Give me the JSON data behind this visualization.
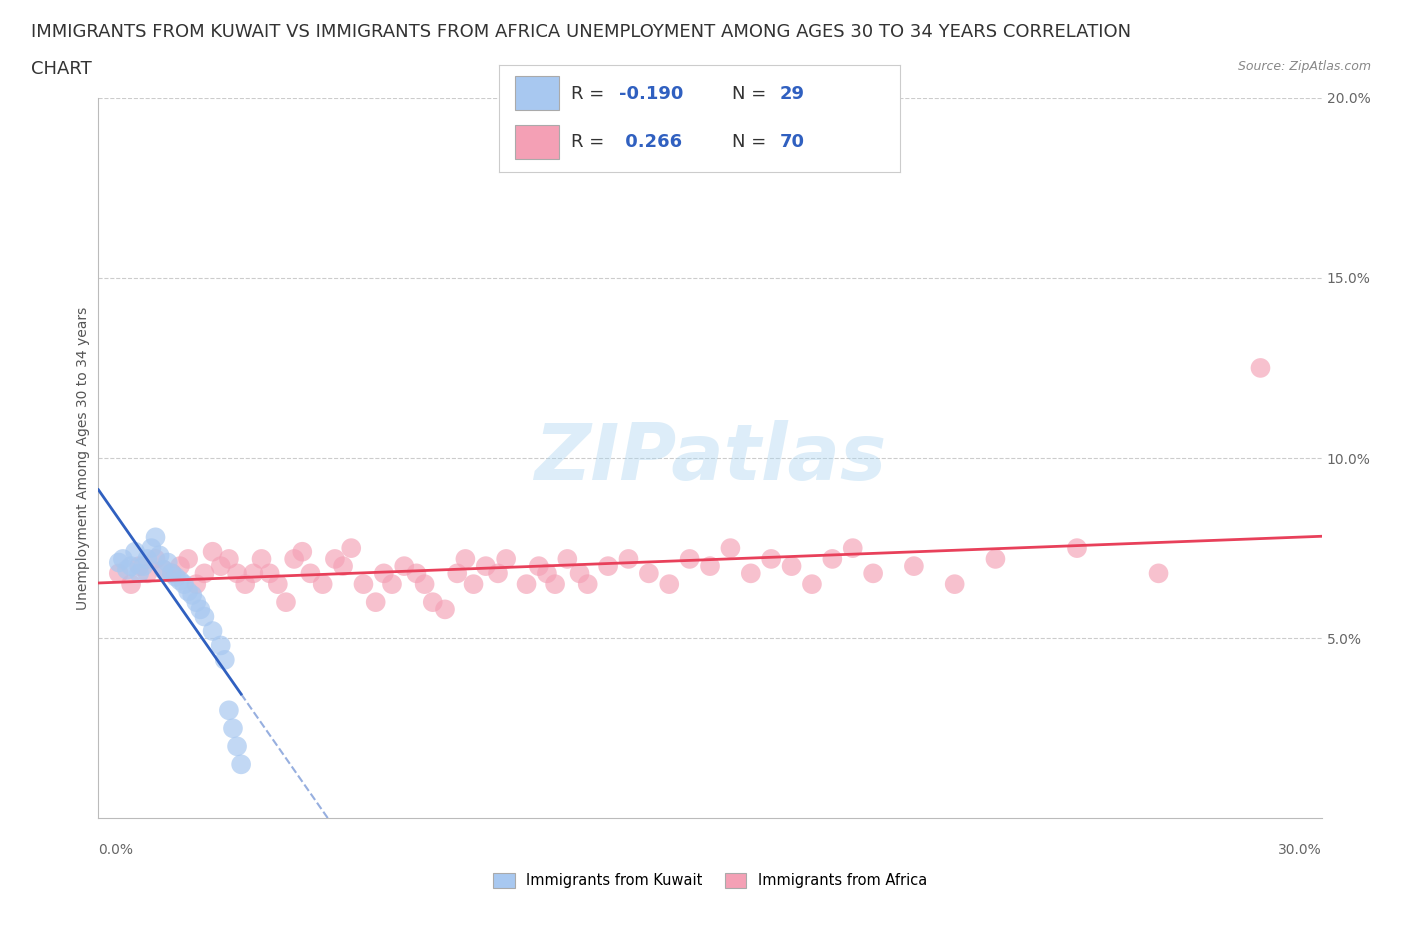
{
  "title_line1": "IMMIGRANTS FROM KUWAIT VS IMMIGRANTS FROM AFRICA UNEMPLOYMENT AMONG AGES 30 TO 34 YEARS CORRELATION",
  "title_line2": "CHART",
  "source": "Source: ZipAtlas.com",
  "xlabel_bottom_left": "0.0%",
  "xlabel_bottom_right": "30.0%",
  "ylabel": "Unemployment Among Ages 30 to 34 years",
  "xlim": [
    0.0,
    0.3
  ],
  "ylim": [
    0.0,
    0.2
  ],
  "yticks": [
    0.05,
    0.1,
    0.15,
    0.2
  ],
  "ytick_labels": [
    "5.0%",
    "10.0%",
    "15.0%",
    "20.0%"
  ],
  "series": [
    {
      "name": "Immigrants from Kuwait",
      "color": "#a8c8f0",
      "R": -0.19,
      "N": 29,
      "x": [
        0.005,
        0.006,
        0.007,
        0.008,
        0.009,
        0.01,
        0.011,
        0.012,
        0.013,
        0.014,
        0.015,
        0.016,
        0.017,
        0.018,
        0.019,
        0.02,
        0.021,
        0.022,
        0.023,
        0.024,
        0.025,
        0.026,
        0.028,
        0.03,
        0.031,
        0.032,
        0.033,
        0.034,
        0.035
      ],
      "y": [
        0.071,
        0.072,
        0.069,
        0.07,
        0.074,
        0.068,
        0.07,
        0.072,
        0.075,
        0.078,
        0.073,
        0.069,
        0.071,
        0.068,
        0.067,
        0.066,
        0.065,
        0.063,
        0.062,
        0.06,
        0.058,
        0.056,
        0.052,
        0.048,
        0.044,
        0.03,
        0.025,
        0.02,
        0.015
      ]
    },
    {
      "name": "Immigrants from Africa",
      "color": "#f4a0b5",
      "R": 0.266,
      "N": 70,
      "x": [
        0.005,
        0.008,
        0.01,
        0.012,
        0.014,
        0.016,
        0.018,
        0.02,
        0.022,
        0.024,
        0.026,
        0.028,
        0.03,
        0.032,
        0.034,
        0.036,
        0.038,
        0.04,
        0.042,
        0.044,
        0.046,
        0.048,
        0.05,
        0.052,
        0.055,
        0.058,
        0.06,
        0.062,
        0.065,
        0.068,
        0.07,
        0.072,
        0.075,
        0.078,
        0.08,
        0.082,
        0.085,
        0.088,
        0.09,
        0.092,
        0.095,
        0.098,
        0.1,
        0.105,
        0.108,
        0.11,
        0.112,
        0.115,
        0.118,
        0.12,
        0.125,
        0.13,
        0.135,
        0.14,
        0.145,
        0.15,
        0.155,
        0.16,
        0.165,
        0.17,
        0.175,
        0.18,
        0.185,
        0.19,
        0.2,
        0.21,
        0.22,
        0.24,
        0.26,
        0.285
      ],
      "y": [
        0.068,
        0.065,
        0.07,
        0.068,
        0.072,
        0.069,
        0.068,
        0.07,
        0.072,
        0.065,
        0.068,
        0.074,
        0.07,
        0.072,
        0.068,
        0.065,
        0.068,
        0.072,
        0.068,
        0.065,
        0.06,
        0.072,
        0.074,
        0.068,
        0.065,
        0.072,
        0.07,
        0.075,
        0.065,
        0.06,
        0.068,
        0.065,
        0.07,
        0.068,
        0.065,
        0.06,
        0.058,
        0.068,
        0.072,
        0.065,
        0.07,
        0.068,
        0.072,
        0.065,
        0.07,
        0.068,
        0.065,
        0.072,
        0.068,
        0.065,
        0.07,
        0.072,
        0.068,
        0.065,
        0.072,
        0.07,
        0.075,
        0.068,
        0.072,
        0.07,
        0.065,
        0.072,
        0.075,
        0.068,
        0.07,
        0.065,
        0.072,
        0.075,
        0.068,
        0.125
      ]
    }
  ],
  "kuwait_trend_color": "#3060c0",
  "africa_trend_color": "#e8405a",
  "background_color": "#ffffff",
  "grid_color": "#cccccc",
  "watermark": "ZIPatlas",
  "legend_R_kuwait": "-0.190",
  "legend_N_kuwait": "29",
  "legend_R_africa": "0.266",
  "legend_N_africa": "70",
  "title_fontsize": 13,
  "axis_fontsize": 10,
  "legend_value_color": "#3060c0",
  "legend_text_color": "#333333"
}
